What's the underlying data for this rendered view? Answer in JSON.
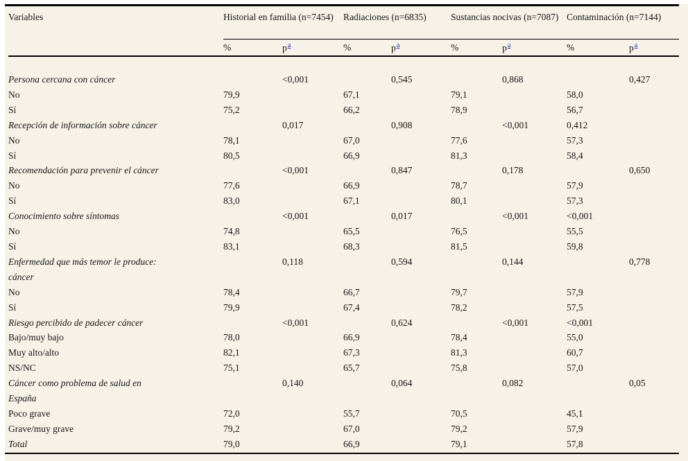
{
  "page": {
    "background_color": "#f6f2e7",
    "margin_color": "#ffffff",
    "text_color": "#151515",
    "rule_color": "#000000",
    "footnote_link_color": "#2a2acc"
  },
  "header": {
    "variables_label": "Variables",
    "groups": [
      {
        "label": "Historial en familia (n=7454)"
      },
      {
        "label": "Radiaciones (n=6835)"
      },
      {
        "label": "Sustancias nocivas (n=7087)"
      },
      {
        "label": "Contaminación (n=7144)"
      }
    ],
    "subheaders": {
      "percent": "%",
      "p": "p",
      "footnote_marker": "a"
    }
  },
  "columns_order": [
    "historial_pct",
    "historial_p",
    "radiaciones_pct",
    "radiaciones_p",
    "sustancias_pct",
    "sustancias_p",
    "contaminacion_pct",
    "contaminacion_p"
  ],
  "rows": [
    {
      "style": "category",
      "label": "Persona cercana con cáncer",
      "cells": [
        "",
        "<0,001",
        "",
        "0,545",
        "",
        "0,868",
        "",
        "0,427"
      ]
    },
    {
      "style": "level",
      "label": "No",
      "cells": [
        "79,9",
        "",
        "67,1",
        "",
        "79,1",
        "",
        "58,0",
        ""
      ]
    },
    {
      "style": "level",
      "label": "Sí",
      "cells": [
        "75,2",
        "",
        "66,2",
        "",
        "78,9",
        "",
        "56,7",
        ""
      ]
    },
    {
      "style": "category",
      "label": "Recepción de información sobre cáncer",
      "cells": [
        "",
        "0,017",
        "",
        "0,908",
        "",
        "<0,001",
        "0,412",
        ""
      ]
    },
    {
      "style": "level",
      "label": "No",
      "cells": [
        "78,1",
        "",
        "67,0",
        "",
        "77,6",
        "",
        "57,3",
        ""
      ]
    },
    {
      "style": "level",
      "label": "Sí",
      "cells": [
        "80,5",
        "",
        "66,9",
        "",
        "81,3",
        "",
        "58,4",
        ""
      ]
    },
    {
      "style": "category",
      "label": "Recomendación para prevenir el cáncer",
      "cells": [
        "",
        "<0,001",
        "",
        "0,847",
        "",
        "0,178",
        "",
        "0,650"
      ]
    },
    {
      "style": "level",
      "label": "No",
      "cells": [
        "77,6",
        "",
        "66,9",
        "",
        "78,7",
        "",
        "57,9",
        ""
      ]
    },
    {
      "style": "level",
      "label": "Sí",
      "cells": [
        "83,0",
        "",
        "67,1",
        "",
        "80,1",
        "",
        "57,3",
        ""
      ]
    },
    {
      "style": "category",
      "label": "Conocimiento sobre síntomas",
      "cells": [
        "",
        "<0,001",
        "",
        "0,017",
        "",
        "<0,001",
        "<0,001",
        ""
      ]
    },
    {
      "style": "level",
      "label": "No",
      "cells": [
        "74,8",
        "",
        "65,5",
        "",
        "76,5",
        "",
        "55,5",
        ""
      ]
    },
    {
      "style": "level",
      "label": "Sí",
      "cells": [
        "83,1",
        "",
        "68,3",
        "",
        "81,5",
        "",
        "59,8",
        ""
      ]
    },
    {
      "style": "category",
      "label": "Enfermedad que más temor le produce:",
      "label2": "cáncer",
      "cells": [
        "",
        "0,118",
        "",
        "0,594",
        "",
        "0,144",
        "",
        "0,778"
      ]
    },
    {
      "style": "level",
      "label": "No",
      "cells": [
        "78,4",
        "",
        "66,7",
        "",
        "79,7",
        "",
        "57,9",
        ""
      ]
    },
    {
      "style": "level",
      "label": "Sí",
      "cells": [
        "79,9",
        "",
        "67,4",
        "",
        "78,2",
        "",
        "57,5",
        ""
      ]
    },
    {
      "style": "category",
      "label": "Riesgo percibido de padecer cáncer",
      "cells": [
        "",
        "<0,001",
        "",
        "0,624",
        "",
        "<0,001",
        "<0,001",
        ""
      ]
    },
    {
      "style": "level",
      "label": "Bajo/muy bajo",
      "cells": [
        "78,0",
        "",
        "66,9",
        "",
        "78,4",
        "",
        "55,0",
        ""
      ]
    },
    {
      "style": "level",
      "label": "Muy alto/alto",
      "cells": [
        "82,1",
        "",
        "67,3",
        "",
        "81,3",
        "",
        "60,7",
        ""
      ]
    },
    {
      "style": "level",
      "label": "NS/NC",
      "cells": [
        "75,1",
        "",
        "65,7",
        "",
        "75,8",
        "",
        "57,0",
        ""
      ]
    },
    {
      "style": "category",
      "label": "Cáncer como problema de salud en",
      "label2": "España",
      "cells": [
        "",
        "0,140",
        "",
        "0,064",
        "",
        "0,082",
        "",
        "0,05"
      ]
    },
    {
      "style": "level",
      "label": "Poco grave",
      "cells": [
        "72,0",
        "",
        "55,7",
        "",
        "70,5",
        "",
        "45,1",
        ""
      ]
    },
    {
      "style": "level",
      "label": "Grave/muy grave",
      "cells": [
        "79,2",
        "",
        "67,0",
        "",
        "79,2",
        "",
        "57,9",
        ""
      ]
    },
    {
      "style": "total",
      "label": "Total",
      "cells": [
        "79,0",
        "",
        "66,9",
        "",
        "79,1",
        "",
        "57,8",
        ""
      ]
    }
  ]
}
